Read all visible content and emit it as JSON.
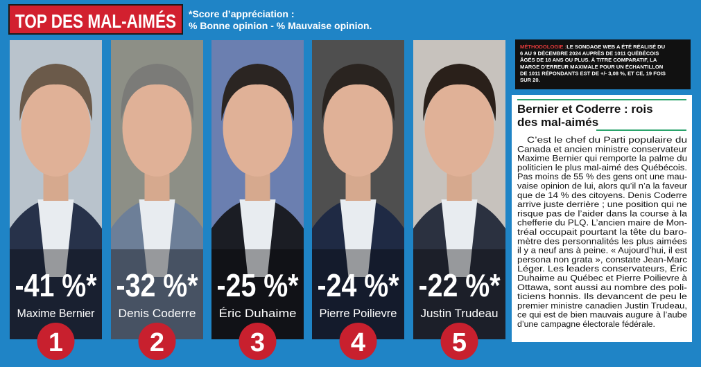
{
  "header": {
    "title": "TOP DES MAL-AIMÉS",
    "subtitle": [
      "*Score d’appréciation :",
      "% Bonne opinion - % Mauvaise opinion."
    ]
  },
  "people": [
    {
      "rank": "1",
      "score": "-41 %*",
      "name": "Maxime Bernier"
    },
    {
      "rank": "2",
      "score": "-32 %*",
      "name": "Denis Coderre"
    },
    {
      "rank": "3",
      "score": "-25 %*",
      "name": "Éric Duhaime"
    },
    {
      "rank": "4",
      "score": "-24 %*",
      "name": "Pierre Poilievre"
    },
    {
      "rank": "5",
      "score": "-22 %*",
      "name": "Justin Trudeau"
    }
  ],
  "methodology": {
    "label": "MÉTHODOLOGIE :",
    "lines": [
      " LE SONDAGE WEB A ÉTÉ RÉALISÉ DU",
      "6 AU 9 DÉCEMBRE 2024 AUPRÈS DE 1011 QUÉBÉCOIS",
      "ÂGÉS DE 18 ANS OU PLUS. À TITRE COMPARATIF, LA",
      "MARGE D’ERREUR MAXIMALE POUR UN ÉCHANTILLON",
      "DE 1011 RÉPONDANTS EST DE +/- 3,08 %, ET CE, 19 FOIS",
      "SUR 20."
    ]
  },
  "article": {
    "title": [
      "Bernier et Coderre : rois",
      "des mal-aimés"
    ],
    "body": [
      "C’est le chef du Parti populaire du",
      "Canada et ancien ministre conservateur",
      "Maxime Bernier qui remporte la palme du",
      "politicien le plus mal-aimé des Québécois.",
      "Pas moins de 55 % des gens ont une mau-",
      "vaise opinion de lui, alors qu’il n’a la faveur",
      "que de 14 % des citoyens. Denis Coderre",
      "arrive juste derrière ; une position qui ne",
      "risque pas de l’aider dans la course à la",
      "chefferie du PLQ. L’ancien maire de Mon-",
      "tréal occupait pourtant la tête du baro-",
      "mètre des personnalités les plus aimées",
      "il y a neuf ans à peine. « Aujourd’hui, il est",
      "persona non grata », constate Jean-Marc",
      "Léger. Les leaders conservateurs, Éric",
      "Duhaime au Québec et Pierre Poilievre à",
      "Ottawa, sont aussi au nombre des poli-",
      "ticiens honnis. Ils devancent de peu le",
      "premier ministre canadien Justin Trudeau,",
      "ce qui est de bien mauvais augure à l’aube",
      "d’une campagne électorale fédérale."
    ]
  }
}
